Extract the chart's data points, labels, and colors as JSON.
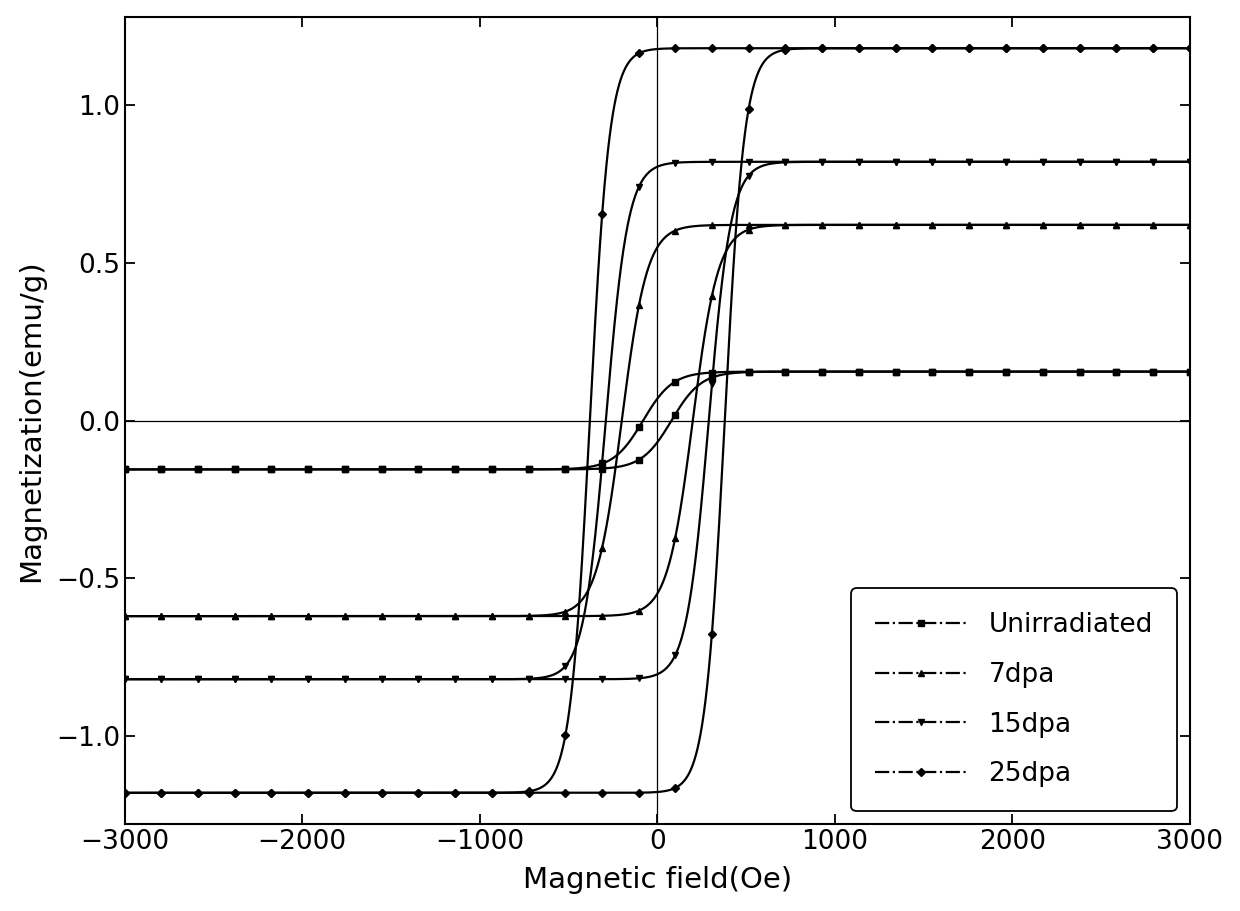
{
  "title": "",
  "xlabel": "Magnetic field(Oe)",
  "ylabel": "Magnetization(emu/g)",
  "xlim": [
    -3000,
    3000
  ],
  "ylim": [
    -1.28,
    1.28
  ],
  "xticks": [
    -3000,
    -2000,
    -1000,
    0,
    1000,
    2000,
    3000
  ],
  "yticks": [
    -1.0,
    -0.5,
    0.0,
    0.5,
    1.0
  ],
  "background_color": "#ffffff",
  "curves": [
    {
      "label": "Unirradiated",
      "Ms": 0.155,
      "Hc": 80,
      "k": 0.006,
      "marker": "s",
      "color": "#000000",
      "linewidth": 1.6,
      "markersize": 4.5,
      "n_markers": 30
    },
    {
      "label": "7dpa",
      "Ms": 0.62,
      "Hc": 200,
      "k": 0.007,
      "marker": "^",
      "color": "#000000",
      "linewidth": 1.6,
      "markersize": 4.5,
      "n_markers": 30
    },
    {
      "label": "15dpa",
      "Ms": 0.82,
      "Hc": 290,
      "k": 0.008,
      "marker": "v",
      "color": "#000000",
      "linewidth": 1.6,
      "markersize": 4.5,
      "n_markers": 30
    },
    {
      "label": "25dpa",
      "Ms": 1.18,
      "Hc": 380,
      "k": 0.009,
      "marker": "D",
      "color": "#000000",
      "linewidth": 1.6,
      "markersize": 4.5,
      "n_markers": 30
    }
  ]
}
